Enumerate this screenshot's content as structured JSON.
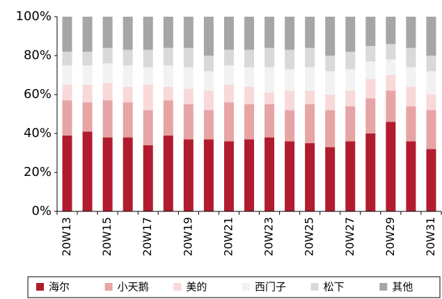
{
  "chart_data": {
    "type": "stacked_bar",
    "categories": [
      "20W13",
      null,
      "20W15",
      null,
      "20W17",
      null,
      "20W19",
      null,
      "20W21",
      null,
      "20W23",
      null,
      "20W25",
      null,
      "20W27",
      null,
      "20W29",
      null,
      "20W31"
    ],
    "series": [
      {
        "name": "海尔",
        "color": "#b01c2e",
        "values": [
          39,
          41,
          38,
          38,
          34,
          39,
          37,
          37,
          36,
          37,
          38,
          36,
          35,
          33,
          36,
          40,
          46,
          36,
          32
        ]
      },
      {
        "name": "小天鹅",
        "color": "#e6a4a4",
        "values": [
          18,
          15,
          19,
          18,
          18,
          18,
          18,
          15,
          20,
          18,
          17,
          16,
          20,
          19,
          18,
          18,
          16,
          18,
          20
        ]
      },
      {
        "name": "美的",
        "color": "#f8d8d8",
        "values": [
          8,
          9,
          9,
          8,
          13,
          7,
          8,
          10,
          9,
          9,
          6,
          10,
          7,
          8,
          8,
          10,
          8,
          10,
          8
        ]
      },
      {
        "name": "西门子",
        "color": "#f2f2f2",
        "values": [
          10,
          10,
          10,
          11,
          9,
          11,
          11,
          10,
          10,
          10,
          13,
          11,
          12,
          12,
          11,
          9,
          8,
          10,
          12
        ]
      },
      {
        "name": "松下",
        "color": "#d9d9d9",
        "values": [
          7,
          7,
          8,
          8,
          9,
          9,
          10,
          8,
          8,
          9,
          10,
          10,
          10,
          8,
          9,
          8,
          8,
          10,
          8
        ]
      },
      {
        "name": "其他",
        "color": "#a6a6a6",
        "values": [
          18,
          18,
          16,
          17,
          17,
          16,
          16,
          20,
          17,
          17,
          16,
          17,
          16,
          20,
          18,
          15,
          14,
          16,
          20
        ]
      }
    ],
    "ylim": [
      0,
      100
    ],
    "yticks": [
      {
        "value": 0,
        "label": "0%"
      },
      {
        "value": 20,
        "label": "20%"
      },
      {
        "value": 40,
        "label": "40%"
      },
      {
        "value": 60,
        "label": "60%"
      },
      {
        "value": 80,
        "label": "80%"
      },
      {
        "value": 100,
        "label": "100%"
      }
    ],
    "legend": "bottom"
  }
}
